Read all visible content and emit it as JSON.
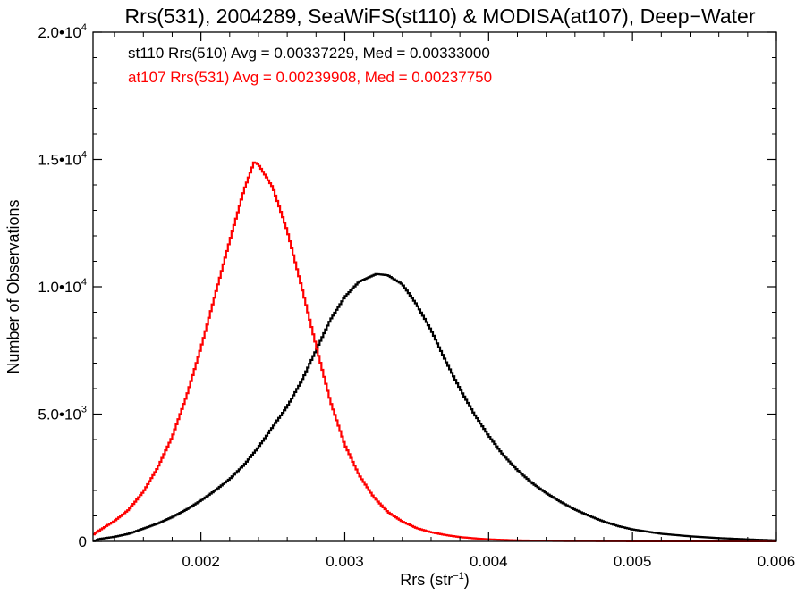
{
  "chart_data": {
    "type": "line",
    "title": "Rrs(531), 2004289, SeaWiFS(st110) & MODISA(at107), Deep−Water",
    "xlabel": "Rrs (str",
    "xlabel_sup": "−1",
    "xlabel_end": ")",
    "ylabel": "Number of Observations",
    "xlim": [
      0.00125,
      0.006
    ],
    "ylim": [
      0,
      20000
    ],
    "x_ticks": [
      {
        "value": 0.002,
        "label": "0.002"
      },
      {
        "value": 0.003,
        "label": "0.003"
      },
      {
        "value": 0.004,
        "label": "0.004"
      },
      {
        "value": 0.005,
        "label": "0.005"
      },
      {
        "value": 0.006,
        "label": "0.006"
      }
    ],
    "y_ticks": [
      {
        "value": 0,
        "mant": "0",
        "exp": ""
      },
      {
        "value": 5000,
        "mant": "5.0•10",
        "exp": "3"
      },
      {
        "value": 10000,
        "mant": "1.0•10",
        "exp": "4"
      },
      {
        "value": 15000,
        "mant": "1.5•10",
        "exp": "4"
      },
      {
        "value": 20000,
        "mant": "2.0•10",
        "exp": "4"
      }
    ],
    "grid": false,
    "annotations": [
      {
        "text": "st110 Rrs(510) Avg = 0.00337229, Med = 0.00333000",
        "color": "#000000"
      },
      {
        "text": "at107 Rrs(531) Avg = 0.00239908, Med = 0.00237750",
        "color": "#ff0000"
      }
    ],
    "series": [
      {
        "color": "#000000",
        "style": "step",
        "points": [
          [
            0.00125,
            0
          ],
          [
            0.0013,
            100
          ],
          [
            0.0014,
            180
          ],
          [
            0.0015,
            300
          ],
          [
            0.0016,
            500
          ],
          [
            0.0017,
            700
          ],
          [
            0.0018,
            950
          ],
          [
            0.0019,
            1250
          ],
          [
            0.002,
            1600
          ],
          [
            0.0021,
            2000
          ],
          [
            0.0022,
            2450
          ],
          [
            0.0023,
            3000
          ],
          [
            0.0024,
            3700
          ],
          [
            0.0025,
            4500
          ],
          [
            0.0026,
            5300
          ],
          [
            0.0027,
            6300
          ],
          [
            0.0028,
            7500
          ],
          [
            0.0029,
            8700
          ],
          [
            0.003,
            9600
          ],
          [
            0.0031,
            10200
          ],
          [
            0.00322,
            10500
          ],
          [
            0.0033,
            10450
          ],
          [
            0.0034,
            10100
          ],
          [
            0.0035,
            9300
          ],
          [
            0.0036,
            8300
          ],
          [
            0.0037,
            7100
          ],
          [
            0.0038,
            6000
          ],
          [
            0.0039,
            5000
          ],
          [
            0.004,
            4150
          ],
          [
            0.0041,
            3400
          ],
          [
            0.0042,
            2800
          ],
          [
            0.0043,
            2300
          ],
          [
            0.0044,
            1900
          ],
          [
            0.0045,
            1550
          ],
          [
            0.0046,
            1250
          ],
          [
            0.0047,
            1000
          ],
          [
            0.0048,
            780
          ],
          [
            0.0049,
            600
          ],
          [
            0.005,
            470
          ],
          [
            0.0052,
            300
          ],
          [
            0.0054,
            200
          ],
          [
            0.0056,
            130
          ],
          [
            0.0058,
            80
          ],
          [
            0.006,
            40
          ]
        ]
      },
      {
        "color": "#ff0000",
        "style": "step",
        "points": [
          [
            0.00125,
            250
          ],
          [
            0.0013,
            450
          ],
          [
            0.0014,
            800
          ],
          [
            0.0015,
            1250
          ],
          [
            0.0016,
            1950
          ],
          [
            0.0017,
            2900
          ],
          [
            0.0018,
            4100
          ],
          [
            0.0019,
            5700
          ],
          [
            0.002,
            7600
          ],
          [
            0.0021,
            9700
          ],
          [
            0.0022,
            11800
          ],
          [
            0.0023,
            13800
          ],
          [
            0.00237,
            14900
          ],
          [
            0.0024,
            14800
          ],
          [
            0.0025,
            13900
          ],
          [
            0.0026,
            12200
          ],
          [
            0.0027,
            10000
          ],
          [
            0.0028,
            7700
          ],
          [
            0.0029,
            5500
          ],
          [
            0.003,
            3800
          ],
          [
            0.0031,
            2600
          ],
          [
            0.0032,
            1750
          ],
          [
            0.0033,
            1150
          ],
          [
            0.0034,
            780
          ],
          [
            0.0035,
            520
          ],
          [
            0.0036,
            360
          ],
          [
            0.0037,
            250
          ],
          [
            0.0038,
            170
          ],
          [
            0.0039,
            120
          ],
          [
            0.004,
            80
          ],
          [
            0.0042,
            40
          ],
          [
            0.0045,
            15
          ],
          [
            0.005,
            5
          ],
          [
            0.006,
            2
          ]
        ]
      }
    ]
  }
}
